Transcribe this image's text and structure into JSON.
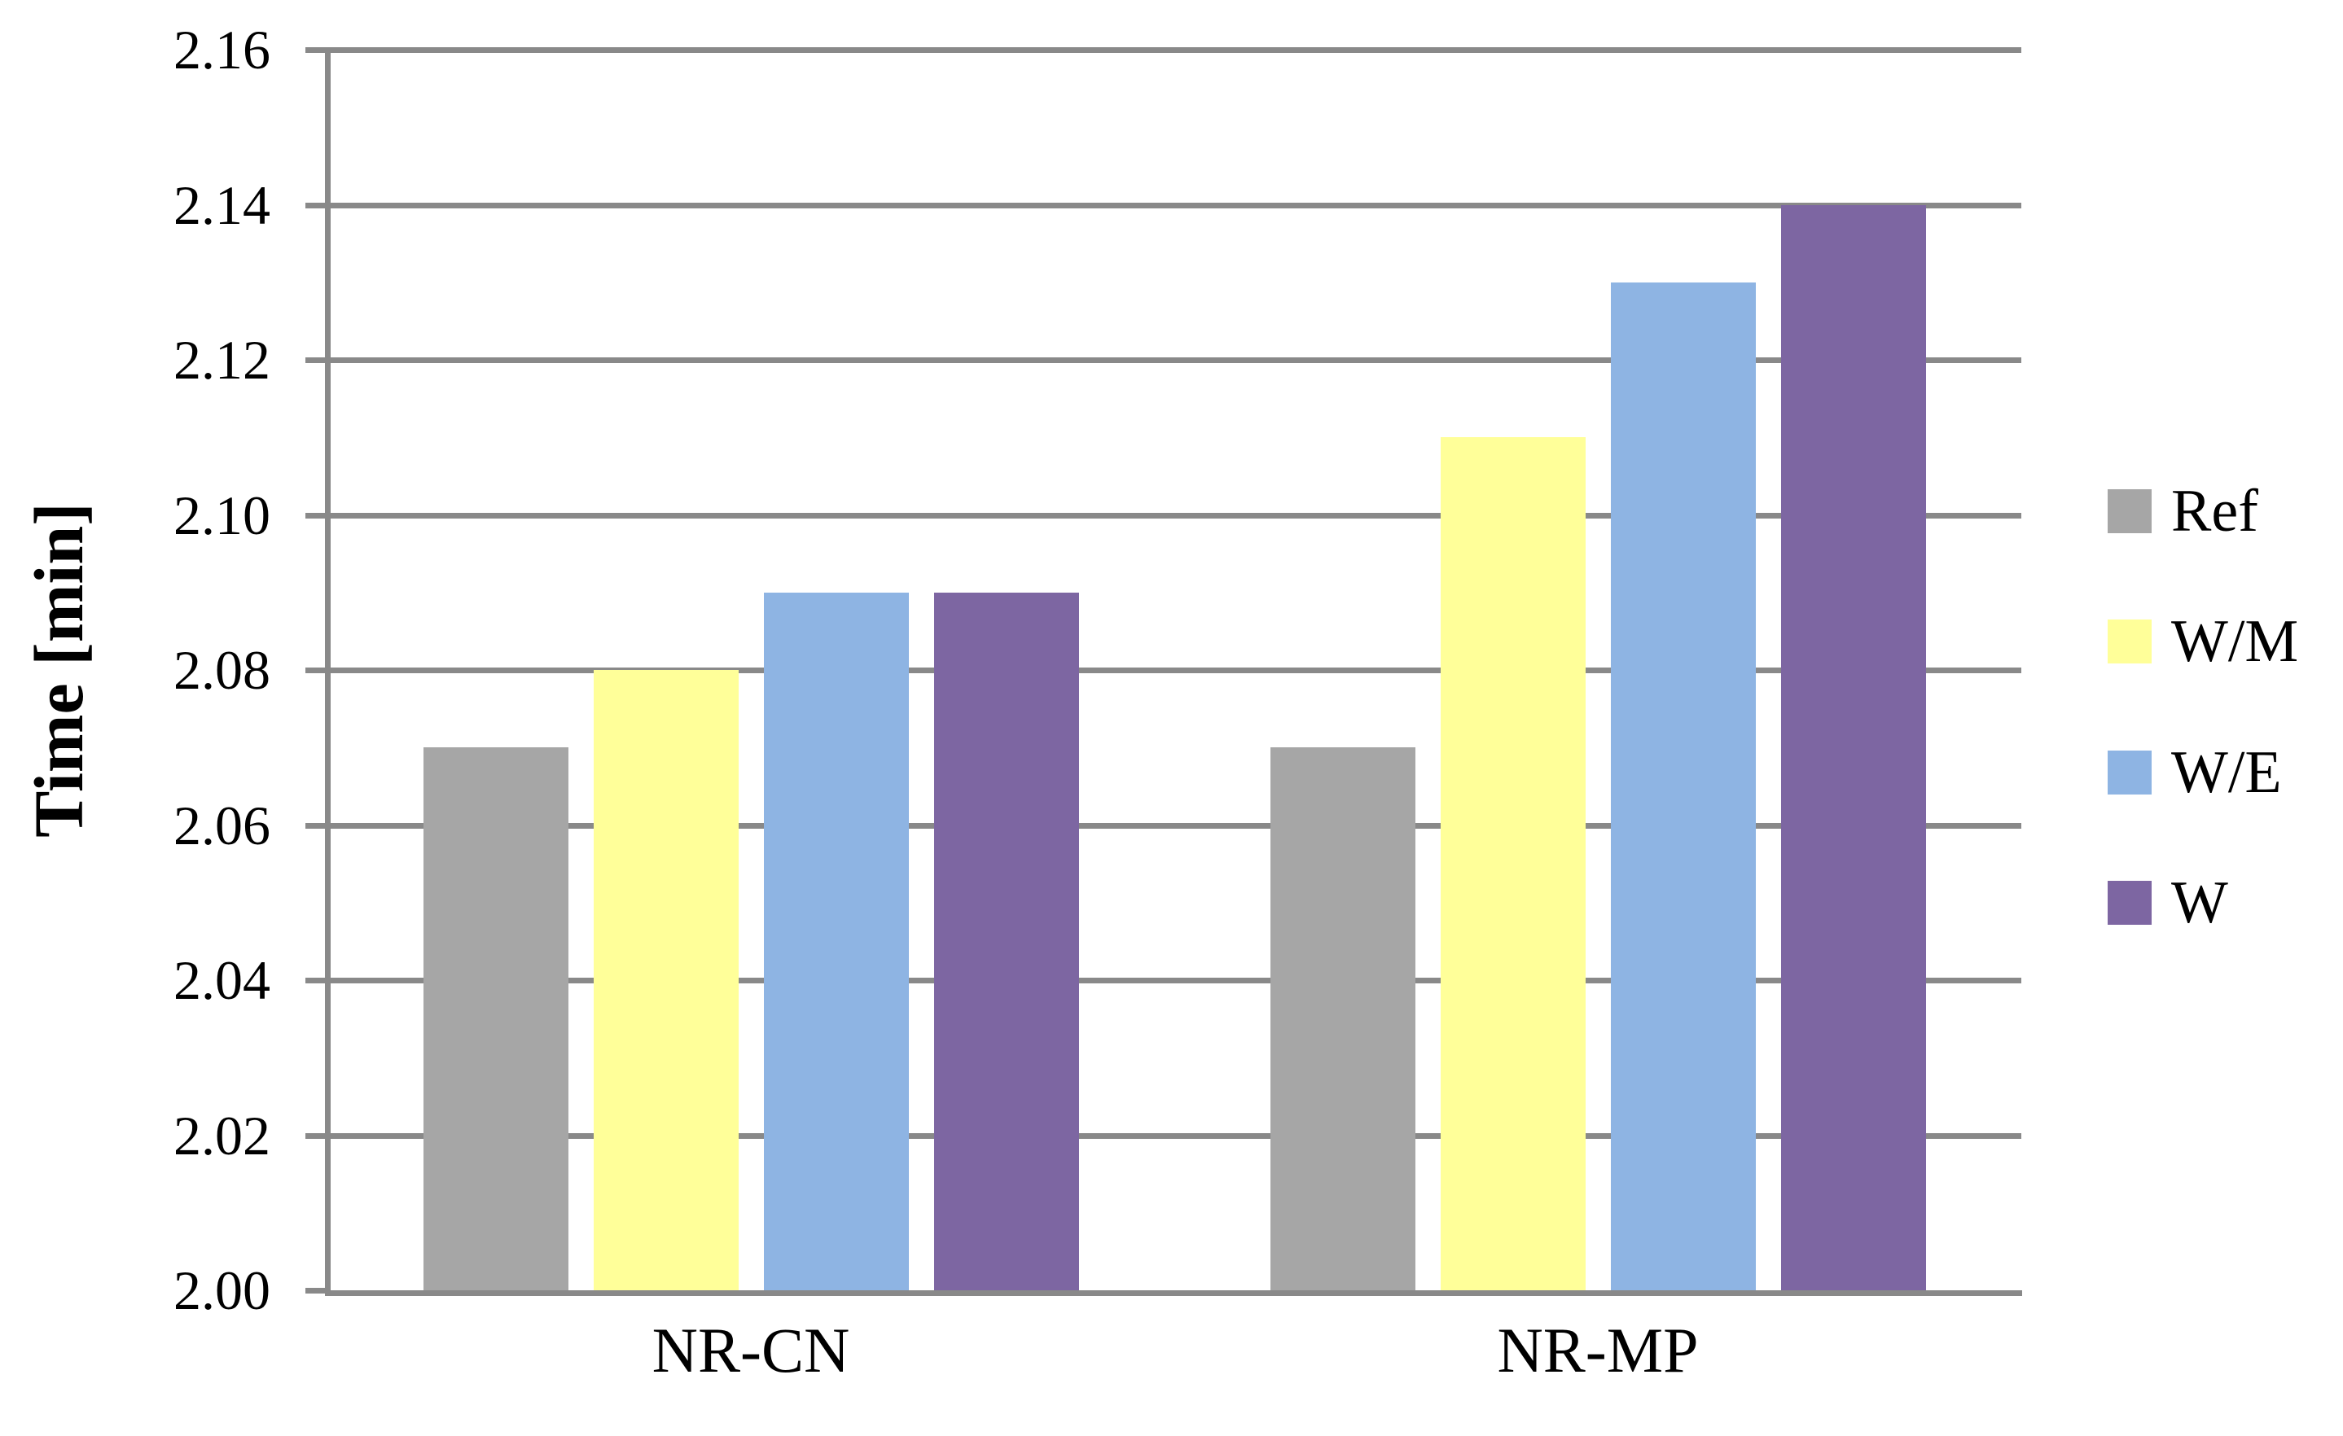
{
  "chart_data": {
    "type": "bar",
    "title": "",
    "xlabel": "",
    "ylabel": "Time [min]",
    "categories": [
      "NR-CN",
      "NR-MP"
    ],
    "series": [
      {
        "name": "Ref",
        "color": "#A6A6A6",
        "values": [
          2.07,
          2.07
        ]
      },
      {
        "name": "W/M",
        "color": "#FFFF99",
        "values": [
          2.08,
          2.11
        ]
      },
      {
        "name": "W/E",
        "color": "#8EB4E3",
        "values": [
          2.09,
          2.13
        ]
      },
      {
        "name": "W",
        "color": "#7D66A2",
        "values": [
          2.09,
          2.14
        ]
      }
    ],
    "ylim": [
      2.0,
      2.16
    ],
    "y_ticks": [
      {
        "value": 2.0,
        "label": "2.00"
      },
      {
        "value": 2.02,
        "label": "2.02"
      },
      {
        "value": 2.04,
        "label": "2.04"
      },
      {
        "value": 2.06,
        "label": "2.06"
      },
      {
        "value": 2.08,
        "label": "2.08"
      },
      {
        "value": 2.1,
        "label": "2.10"
      },
      {
        "value": 2.12,
        "label": "2.12"
      },
      {
        "value": 2.14,
        "label": "2.14"
      },
      {
        "value": 2.16,
        "label": "2.16"
      }
    ],
    "grid": true,
    "legend_position": "right",
    "axis_color": "#898989",
    "text_color": "#000000"
  }
}
